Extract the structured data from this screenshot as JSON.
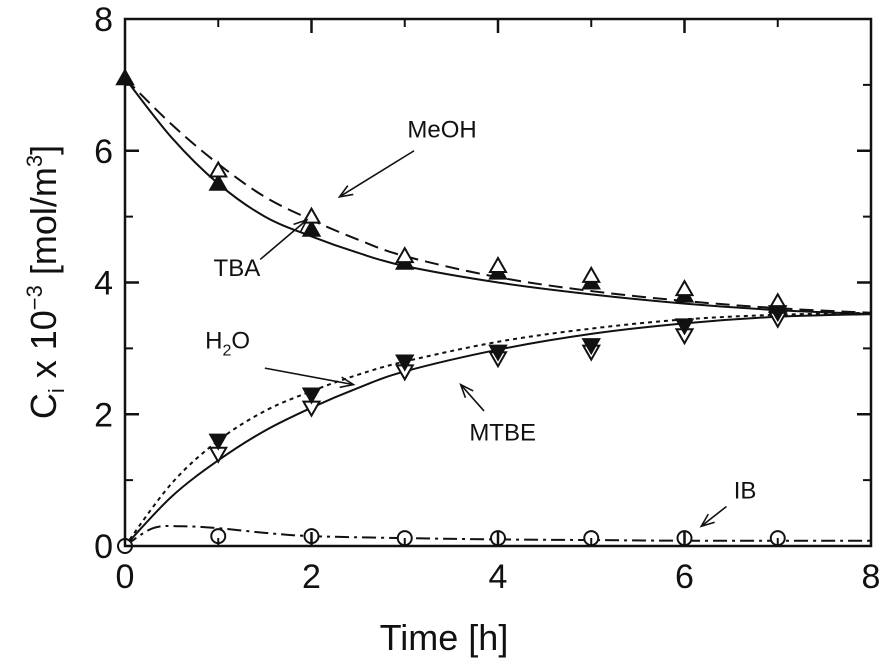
{
  "chart_data": {
    "type": "scatter",
    "xlabel": "Time [h]",
    "ylabel": {
      "base": "C",
      "sub": "i",
      "mid": " x 10",
      "sup": "−3",
      "unit_start": " [mol/m",
      "unit_sup": "3",
      "unit_end": "]"
    },
    "xlim": [
      0,
      8
    ],
    "ylim": [
      0,
      8
    ],
    "xticks": [
      "0",
      "2",
      "4",
      "6",
      "8"
    ],
    "yticks": [
      "0",
      "2",
      "4",
      "6",
      "8"
    ],
    "grid": false,
    "series": [
      {
        "name": "TBA",
        "marker": "filled-triangle-up",
        "points": [
          [
            0,
            7.1
          ],
          [
            1,
            5.5
          ],
          [
            2,
            4.8
          ],
          [
            3,
            4.3
          ],
          [
            4,
            4.15
          ],
          [
            5,
            4.0
          ],
          [
            6,
            3.8
          ],
          [
            7,
            3.65
          ]
        ],
        "model": [
          [
            0,
            7.1
          ],
          [
            0.5,
            6.2
          ],
          [
            1,
            5.5
          ],
          [
            1.5,
            5.0
          ],
          [
            2,
            4.7
          ],
          [
            2.5,
            4.45
          ],
          [
            3,
            4.25
          ],
          [
            4,
            4.0
          ],
          [
            5,
            3.82
          ],
          [
            6,
            3.68
          ],
          [
            7,
            3.58
          ],
          [
            8,
            3.52
          ]
        ],
        "line_style": "solid"
      },
      {
        "name": "MeOH",
        "marker": "open-triangle-up",
        "points": [
          [
            1,
            5.7
          ],
          [
            2,
            5.0
          ],
          [
            3,
            4.4
          ],
          [
            4,
            4.25
          ],
          [
            5,
            4.1
          ],
          [
            6,
            3.9
          ],
          [
            7,
            3.7
          ]
        ],
        "model": [
          [
            0,
            7.1
          ],
          [
            0.5,
            6.4
          ],
          [
            1,
            5.8
          ],
          [
            1.5,
            5.3
          ],
          [
            2,
            4.95
          ],
          [
            2.5,
            4.65
          ],
          [
            3,
            4.4
          ],
          [
            4,
            4.08
          ],
          [
            5,
            3.87
          ],
          [
            6,
            3.72
          ],
          [
            7,
            3.61
          ],
          [
            8,
            3.54
          ]
        ],
        "line_style": "dashed"
      },
      {
        "name": "MTBE",
        "marker": "open-triangle-down",
        "points": [
          [
            1,
            1.4
          ],
          [
            2,
            2.1
          ],
          [
            3,
            2.65
          ],
          [
            4,
            2.85
          ],
          [
            5,
            2.95
          ],
          [
            6,
            3.2
          ],
          [
            7,
            3.45
          ]
        ],
        "model": [
          [
            0,
            0
          ],
          [
            0.5,
            0.75
          ],
          [
            1,
            1.3
          ],
          [
            1.5,
            1.75
          ],
          [
            2,
            2.1
          ],
          [
            2.5,
            2.4
          ],
          [
            3,
            2.65
          ],
          [
            4,
            2.98
          ],
          [
            5,
            3.22
          ],
          [
            6,
            3.38
          ],
          [
            7,
            3.48
          ],
          [
            8,
            3.52
          ]
        ],
        "line_style": "solid"
      },
      {
        "name": "H2O",
        "label_parts": [
          "H",
          "2",
          "O"
        ],
        "marker": "filled-triangle-down",
        "points": [
          [
            1,
            1.6
          ],
          [
            2,
            2.3
          ],
          [
            3,
            2.8
          ],
          [
            4,
            2.95
          ],
          [
            5,
            3.05
          ],
          [
            6,
            3.35
          ],
          [
            7,
            3.55
          ]
        ],
        "model": [
          [
            0,
            0
          ],
          [
            0.5,
            0.95
          ],
          [
            1,
            1.6
          ],
          [
            1.5,
            2.05
          ],
          [
            2,
            2.35
          ],
          [
            2.5,
            2.6
          ],
          [
            3,
            2.8
          ],
          [
            4,
            3.1
          ],
          [
            5,
            3.3
          ],
          [
            6,
            3.44
          ],
          [
            7,
            3.51
          ],
          [
            8,
            3.54
          ]
        ],
        "line_style": "dotted"
      },
      {
        "name": "IB",
        "marker": "open-circle",
        "points": [
          [
            0,
            0
          ],
          [
            1,
            0.15
          ],
          [
            2,
            0.15
          ],
          [
            3,
            0.12
          ],
          [
            4,
            0.12
          ],
          [
            5,
            0.12
          ],
          [
            6,
            0.12
          ],
          [
            7,
            0.12
          ]
        ],
        "model": [
          [
            0,
            0
          ],
          [
            0.3,
            0.27
          ],
          [
            0.6,
            0.3
          ],
          [
            1,
            0.27
          ],
          [
            1.5,
            0.2
          ],
          [
            2,
            0.15
          ],
          [
            3,
            0.12
          ],
          [
            4,
            0.1
          ],
          [
            5,
            0.09
          ],
          [
            6,
            0.08
          ],
          [
            7,
            0.08
          ],
          [
            8,
            0.08
          ]
        ],
        "line_style": "dash-dot"
      }
    ],
    "annotations": [
      {
        "text": "MeOH",
        "label_at": [
          3.4,
          6.2
        ],
        "arrow_from": [
          3.1,
          6.0
        ],
        "arrow_to": [
          2.3,
          5.3
        ]
      },
      {
        "text": "TBA",
        "label_at": [
          1.2,
          4.1
        ],
        "arrow_from": [
          1.45,
          4.35
        ],
        "arrow_to": [
          1.95,
          4.95
        ]
      },
      {
        "text": "H2O",
        "label_parts": [
          "H",
          "2",
          "O"
        ],
        "label_at": [
          1.1,
          3.0
        ],
        "arrow_from": [
          1.5,
          2.7
        ],
        "arrow_to": [
          2.45,
          2.45
        ]
      },
      {
        "text": "MTBE",
        "label_at": [
          4.05,
          1.6
        ],
        "arrow_from": [
          3.85,
          2.05
        ],
        "arrow_to": [
          3.6,
          2.45
        ]
      },
      {
        "text": "IB",
        "label_at": [
          6.65,
          0.72
        ],
        "arrow_from": [
          6.45,
          0.6
        ],
        "arrow_to": [
          6.18,
          0.3
        ]
      }
    ]
  }
}
